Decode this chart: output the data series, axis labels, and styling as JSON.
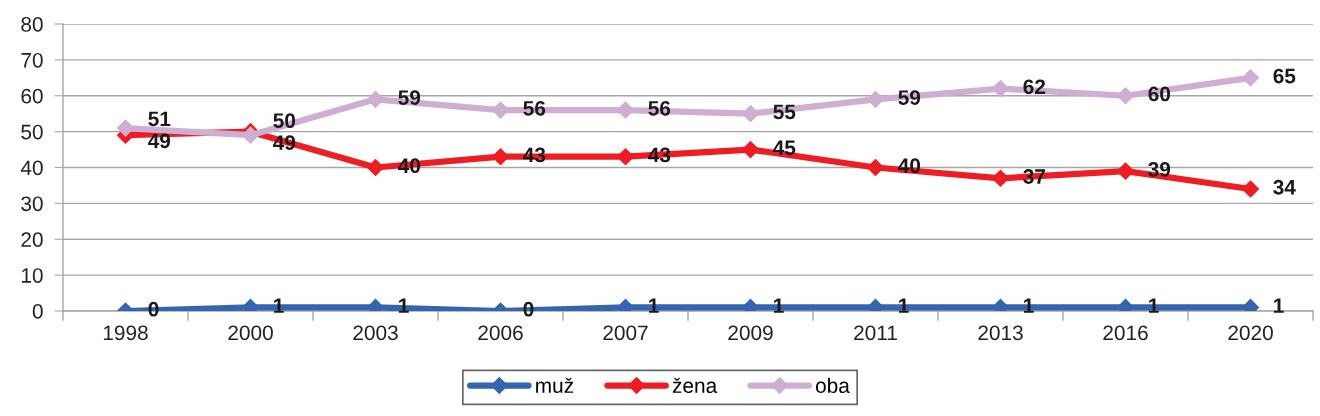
{
  "chart_data": {
    "type": "line",
    "categories": [
      "1998",
      "2000",
      "2003",
      "2006",
      "2007",
      "2009",
      "2011",
      "2013",
      "2016",
      "2020"
    ],
    "series": [
      {
        "name": "muž",
        "color": "#3465b0",
        "values": [
          0,
          1,
          1,
          0,
          1,
          1,
          1,
          1,
          1,
          1
        ]
      },
      {
        "name": "žena",
        "color": "#ee1d23",
        "values": [
          49,
          50,
          40,
          43,
          43,
          45,
          40,
          37,
          39,
          34
        ]
      },
      {
        "name": "oba",
        "color": "#d0aed2",
        "values": [
          51,
          49,
          59,
          56,
          56,
          55,
          59,
          62,
          60,
          65
        ]
      }
    ],
    "ylim": [
      0,
      80
    ],
    "yticks": [
      0,
      10,
      20,
      30,
      40,
      50,
      60,
      70,
      80
    ],
    "grid": "y",
    "legend": "bottom",
    "marker": "diamond",
    "line_style": "solid",
    "data_labels": true
  }
}
